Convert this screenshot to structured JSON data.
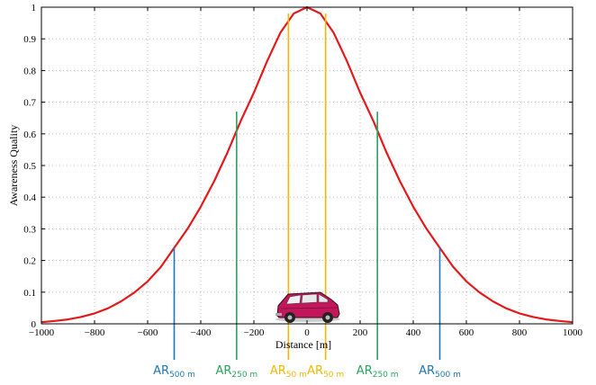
{
  "chart_data": {
    "type": "line",
    "title": "",
    "xlabel": "Distance [m]",
    "ylabel": "Awareness Quality",
    "xlim": [
      -1000,
      1000
    ],
    "ylim": [
      0,
      1
    ],
    "x_ticks": [
      -1000,
      -800,
      -600,
      -400,
      -200,
      0,
      200,
      400,
      600,
      800,
      1000
    ],
    "x_tick_labels": [
      "−1000",
      "−800",
      "−600",
      "−400",
      "−200",
      "0",
      "200",
      "400",
      "600",
      "800",
      "1000"
    ],
    "y_ticks": [
      0,
      0.1,
      0.2,
      0.3,
      0.4,
      0.5,
      0.6,
      0.7,
      0.8,
      0.9,
      1
    ],
    "y_tick_labels": [
      "0",
      "0.1",
      "0.2",
      "0.3",
      "0.4",
      "0.5",
      "0.6",
      "0.7",
      "0.8",
      "0.9",
      "1"
    ],
    "grid": true,
    "series": [
      {
        "color": "#e31a1c",
        "x": [
          -1000,
          -950,
          -900,
          -850,
          -800,
          -750,
          -700,
          -650,
          -600,
          -550,
          -500,
          -450,
          -400,
          -350,
          -300,
          -250,
          -200,
          -150,
          -100,
          -50,
          0,
          50,
          100,
          150,
          200,
          250,
          300,
          350,
          400,
          450,
          500,
          550,
          600,
          650,
          700,
          750,
          800,
          850,
          900,
          950,
          1000
        ],
        "y": [
          0.005,
          0.009,
          0.014,
          0.022,
          0.033,
          0.049,
          0.071,
          0.099,
          0.134,
          0.18,
          0.24,
          0.3,
          0.37,
          0.45,
          0.54,
          0.64,
          0.73,
          0.83,
          0.92,
          0.98,
          1,
          0.98,
          0.92,
          0.83,
          0.73,
          0.64,
          0.54,
          0.45,
          0.37,
          0.3,
          0.24,
          0.18,
          0.134,
          0.099,
          0.071,
          0.049,
          0.033,
          0.022,
          0.014,
          0.009,
          0.005
        ]
      }
    ],
    "markers": [
      {
        "x": -500,
        "y_top": 0.24,
        "color": "#1f77b4",
        "label_main": "AR",
        "label_sub": "500 m"
      },
      {
        "x": -265,
        "y_top": 0.67,
        "color": "#2ca25f",
        "label_main": "AR",
        "label_sub": "250 m"
      },
      {
        "x": -70,
        "y_top": 0.98,
        "color": "#f2b705",
        "label_main": "AR",
        "label_sub": "50 m"
      },
      {
        "x": 70,
        "y_top": 0.98,
        "color": "#f2b705",
        "label_main": "AR",
        "label_sub": "50 m"
      },
      {
        "x": 265,
        "y_top": 0.67,
        "color": "#2ca25f",
        "label_main": "AR",
        "label_sub": "250 m"
      },
      {
        "x": 500,
        "y_top": 0.24,
        "color": "#1f77b4",
        "label_main": "AR",
        "label_sub": "500 m"
      }
    ],
    "illustration": "minivan"
  }
}
